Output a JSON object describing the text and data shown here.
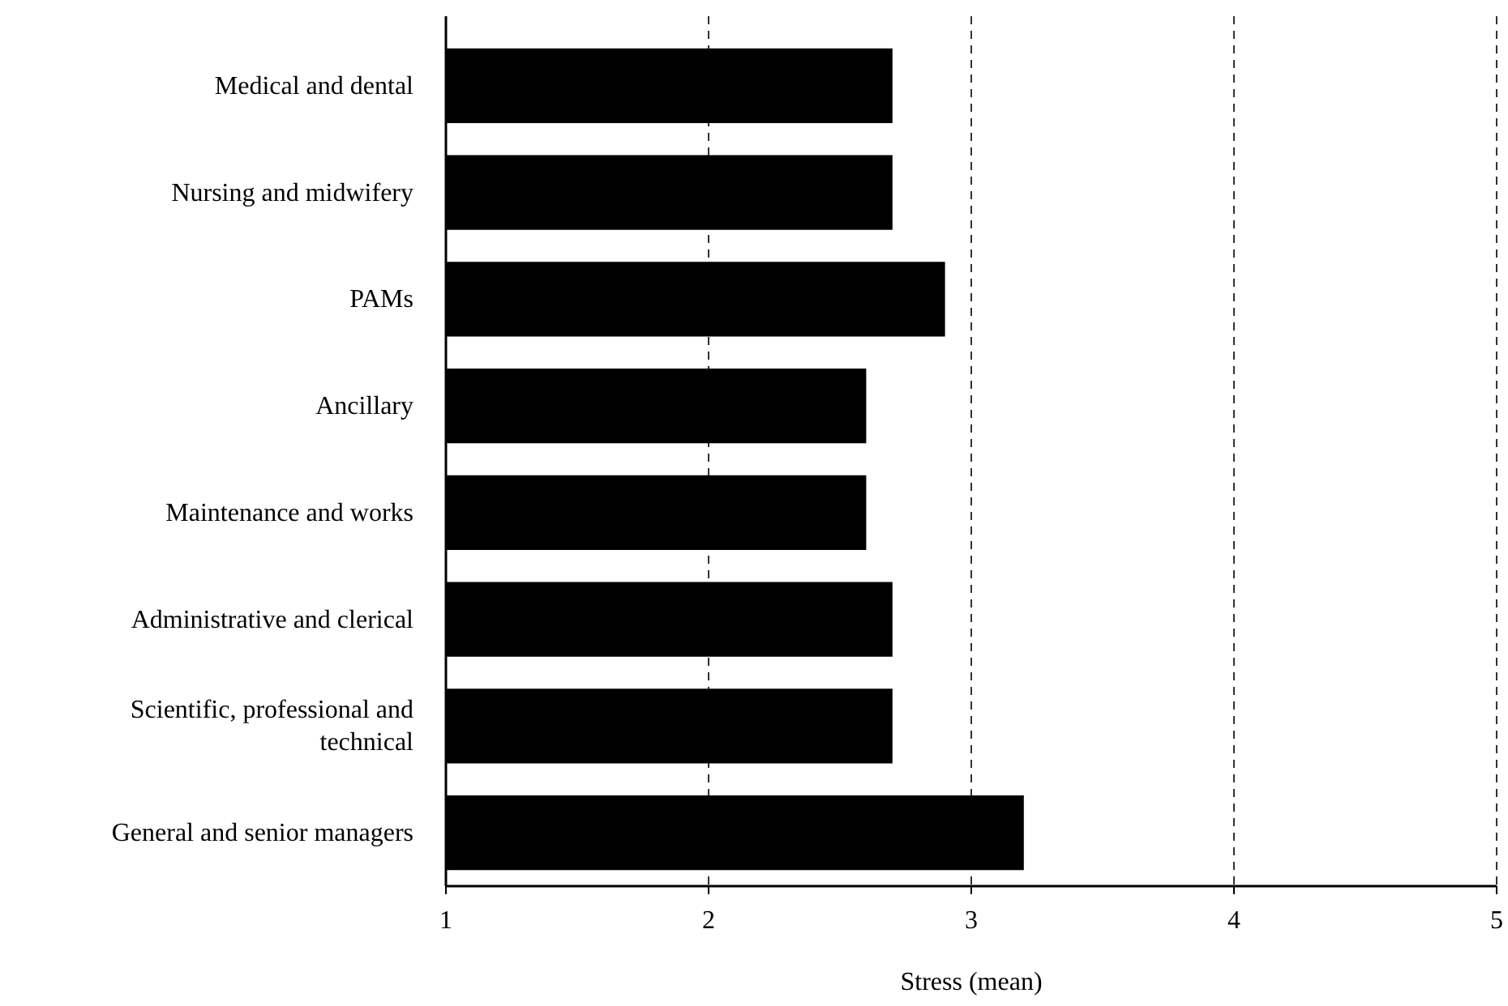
{
  "chart_data": {
    "type": "bar",
    "orientation": "horizontal",
    "xlabel": "Stress (mean)",
    "categories": [
      "Medical and dental",
      "Nursing and midwifery",
      "PAMs",
      "Ancillary",
      "Maintenance and works",
      "Administrative and clerical",
      "Scientific, professional and technical",
      "General and senior managers"
    ],
    "values": [
      2.7,
      2.7,
      2.9,
      2.6,
      2.6,
      2.7,
      2.7,
      3.2
    ],
    "color": "#000000",
    "xlim": [
      1,
      5
    ],
    "xticks": [
      1,
      2,
      3,
      4,
      5
    ],
    "grid": "x"
  }
}
